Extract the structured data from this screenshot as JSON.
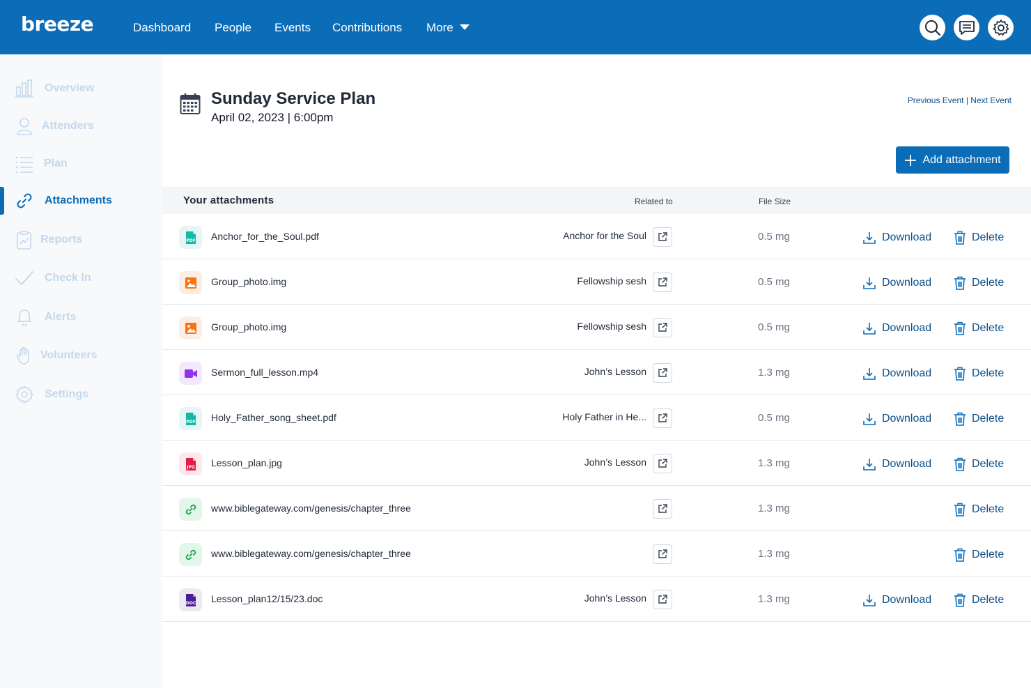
{
  "topbar": {
    "logo": "breeze",
    "nav": [
      "Dashboard",
      "People",
      "Events",
      "Contributions",
      "More"
    ],
    "icons": [
      "search-icon",
      "chat-icon",
      "gear-icon"
    ],
    "color": "#0b6cb8"
  },
  "sidebar": {
    "items": [
      {
        "label": "Overview",
        "icon": "bar-chart-icon"
      },
      {
        "label": "Attenders",
        "icon": "person-icon"
      },
      {
        "label": "Plan",
        "icon": "list-icon"
      },
      {
        "label": "Attachments",
        "icon": "link-icon",
        "active": true
      },
      {
        "label": "Reports",
        "icon": "clipboard-icon"
      },
      {
        "label": "Check In",
        "icon": "check-icon"
      },
      {
        "label": "Alerts",
        "icon": "bell-icon"
      },
      {
        "label": "Volunteers",
        "icon": "hand-icon"
      },
      {
        "label": "Settings",
        "icon": "gear-icon"
      }
    ]
  },
  "header": {
    "title": "Sunday Service Plan",
    "subtitle": "April 02, 2023 | 6:00pm",
    "prev_event": "Previous Event",
    "separator": " | ",
    "next_event": "Next Event",
    "add_button": "Add attachment"
  },
  "table": {
    "title": "Your attachments",
    "col_related": "Related to",
    "col_size": "File Size",
    "download_label": "Download",
    "delete_label": "Delete",
    "rows": [
      {
        "name": "Anchor_for_the_Soul.pdf",
        "related": "Anchor for the Soul",
        "size": "0.5 mg",
        "type": "pdf",
        "download": true
      },
      {
        "name": "Group_photo.img",
        "related": "Fellowship sesh",
        "size": "0.5 mg",
        "type": "img",
        "download": true
      },
      {
        "name": "Group_photo.img",
        "related": "Fellowship sesh",
        "size": "0.5 mg",
        "type": "img",
        "download": true
      },
      {
        "name": "Sermon_full_lesson.mp4",
        "related": "John’s Lesson",
        "size": "1.3 mg",
        "type": "video",
        "download": true
      },
      {
        "name": "Holy_Father_song_sheet.pdf",
        "related": "Holy Father in He...",
        "size": "0.5 mg",
        "type": "pdf",
        "download": true
      },
      {
        "name": "Lesson_plan.jpg",
        "related": "John’s Lesson",
        "size": "1.3 mg",
        "type": "jpg",
        "download": true
      },
      {
        "name": "www.biblegateway.com/genesis/chapter_three",
        "related": "",
        "size": "1.3 mg",
        "type": "link",
        "download": false
      },
      {
        "name": "www.biblegateway.com/genesis/chapter_three",
        "related": "",
        "size": "1.3 mg",
        "type": "link",
        "download": false
      },
      {
        "name": "Lesson_plan12/15/23.doc",
        "related": "John’s Lesson",
        "size": "1.3 mg",
        "type": "doc",
        "download": true
      }
    ]
  }
}
